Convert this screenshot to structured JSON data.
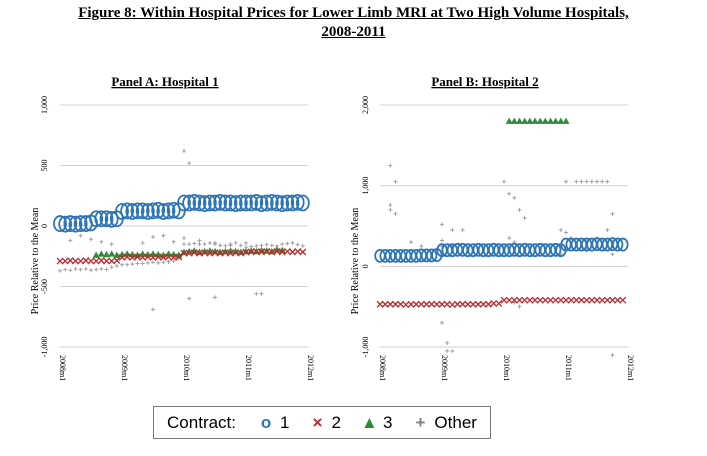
{
  "figure": {
    "title_line1": "Figure 8: Within Hospital Prices for Lower Limb MRI at Two High Volume Hospitals,",
    "title_line2": "2008-2011"
  },
  "colors": {
    "c1": "#2e75b6",
    "c2": "#c0282f",
    "c3": "#2e8b3a",
    "other": "#9a9a9a"
  },
  "legend": {
    "label": "Contract:",
    "items": [
      {
        "symbol": "o",
        "text": "1",
        "color": "#2e75b6"
      },
      {
        "symbol": "×",
        "text": "2",
        "color": "#c0282f"
      },
      {
        "symbol": "▲",
        "text": "3",
        "color": "#2e8b3a"
      },
      {
        "symbol": "+",
        "text": "Other",
        "color": "#808080"
      }
    ]
  },
  "chart_data": [
    {
      "type": "scatter",
      "title": "Panel A: Hospital 1",
      "ylabel": "Price Relative to the Mean",
      "ylim": [
        -1000,
        1000
      ],
      "yticks": [
        1000,
        500,
        0,
        -500,
        -1000
      ],
      "ytick_labels": [
        "1,000",
        "500",
        "0",
        "-500",
        "-1,000"
      ],
      "xlim": [
        0,
        48
      ],
      "xticks": [
        0,
        12,
        24,
        36,
        48
      ],
      "xtick_labels": [
        "2008m1",
        "2009m1",
        "2010m1",
        "2011m1",
        "2012m1"
      ],
      "grid": "horizontal",
      "series": [
        {
          "name": "1",
          "marker": "circle",
          "x": [
            0,
            1,
            2,
            3,
            4,
            5,
            6,
            7,
            8,
            9,
            10,
            11,
            12,
            13,
            14,
            15,
            16,
            17,
            18,
            19,
            20,
            21,
            22,
            23,
            24,
            25,
            26,
            27,
            28,
            29,
            30,
            31,
            32,
            33,
            34,
            35,
            36,
            37,
            38,
            39,
            40,
            41,
            42,
            43,
            44,
            45,
            46,
            47
          ],
          "y": [
            20,
            15,
            20,
            15,
            20,
            20,
            25,
            60,
            60,
            60,
            55,
            60,
            120,
            125,
            120,
            125,
            125,
            120,
            125,
            130,
            120,
            125,
            130,
            125,
            190,
            190,
            195,
            190,
            185,
            190,
            190,
            195,
            190,
            190,
            185,
            190,
            190,
            190,
            195,
            185,
            190,
            195,
            190,
            185,
            190,
            190,
            195,
            190
          ]
        },
        {
          "name": "2",
          "marker": "x",
          "x": [
            0,
            1,
            2,
            3,
            4,
            5,
            6,
            7,
            8,
            9,
            10,
            11,
            12,
            13,
            14,
            15,
            16,
            17,
            18,
            19,
            20,
            21,
            22,
            23,
            24,
            25,
            26,
            27,
            28,
            29,
            30,
            31,
            32,
            33,
            34,
            35,
            36,
            37,
            38,
            39,
            40,
            41,
            42,
            43,
            44,
            45,
            46,
            47
          ],
          "y": [
            -290,
            -290,
            -285,
            -290,
            -290,
            -285,
            -290,
            -290,
            -285,
            -290,
            -290,
            -285,
            -260,
            -255,
            -260,
            -255,
            -260,
            -255,
            -260,
            -255,
            -260,
            -255,
            -260,
            -255,
            -225,
            -225,
            -220,
            -225,
            -220,
            -225,
            -220,
            -225,
            -220,
            -225,
            -220,
            -225,
            -215,
            -215,
            -210,
            -215,
            -210,
            -215,
            -210,
            -215,
            -210,
            -215,
            -210,
            -215
          ]
        },
        {
          "name": "3",
          "marker": "triangle",
          "x": [
            7,
            8,
            9,
            10,
            11,
            12,
            13,
            14,
            15,
            16,
            17,
            18,
            19,
            20,
            21,
            22,
            23,
            24,
            25,
            26,
            27,
            28,
            29,
            30,
            31,
            32,
            33,
            34,
            35,
            36,
            37,
            38,
            39,
            40,
            41,
            42,
            43
          ],
          "y": [
            -240,
            -230,
            -235,
            -230,
            -240,
            -235,
            -230,
            -235,
            -240,
            -230,
            -235,
            -230,
            -235,
            -240,
            -230,
            -235,
            -240,
            -215,
            -210,
            -205,
            -215,
            -210,
            -205,
            -210,
            -215,
            -210,
            -205,
            -210,
            -215,
            -210,
            -205,
            -210,
            -200,
            -205,
            -210,
            -195,
            -200
          ]
        },
        {
          "name": "Other",
          "marker": "plus",
          "x": [
            0,
            1,
            2,
            3,
            4,
            5,
            6,
            7,
            8,
            9,
            10,
            11,
            12,
            13,
            14,
            15,
            16,
            17,
            18,
            19,
            20,
            21,
            22,
            23,
            24,
            25,
            26,
            27,
            28,
            29,
            30,
            31,
            32,
            33,
            34,
            35,
            36,
            37,
            38,
            39,
            40,
            41,
            42,
            43,
            44,
            45,
            46,
            47,
            2,
            4,
            6,
            8,
            10,
            16,
            18,
            20,
            22,
            24,
            27,
            30,
            33,
            36,
            24,
            25,
            38,
            18,
            25,
            30,
            39
          ],
          "y": [
            -370,
            -360,
            -365,
            -355,
            -360,
            -355,
            -365,
            -360,
            -355,
            -360,
            -340,
            -330,
            -320,
            -320,
            -315,
            -310,
            -310,
            -305,
            -300,
            -305,
            -300,
            -295,
            -290,
            -270,
            -150,
            -150,
            -145,
            -150,
            -150,
            -140,
            -140,
            -160,
            -165,
            -150,
            -140,
            -160,
            -175,
            -170,
            -165,
            -160,
            -155,
            -160,
            -165,
            -150,
            -145,
            -140,
            -155,
            -165,
            -120,
            -80,
            -110,
            -130,
            -150,
            -140,
            -90,
            -80,
            -130,
            -100,
            -120,
            -150,
            -160,
            -140,
            620,
            520,
            -560,
            -690,
            -600,
            -590,
            -560
          ]
        }
      ]
    },
    {
      "type": "scatter",
      "title": "Panel B: Hospital 2",
      "ylabel": "Price Relative to the Mean",
      "ylim": [
        -1000,
        2000
      ],
      "yticks": [
        2000,
        1000,
        0,
        -1000
      ],
      "ytick_labels": [
        "2,000",
        "1,000",
        "0",
        "-1,000"
      ],
      "xlim": [
        0,
        48
      ],
      "xticks": [
        0,
        12,
        24,
        36,
        48
      ],
      "xtick_labels": [
        "2008m1",
        "2009m1",
        "2010m1",
        "2011m1",
        "2012m1"
      ],
      "grid": "horizontal",
      "series": [
        {
          "name": "1",
          "marker": "circle",
          "x": [
            0,
            1,
            2,
            3,
            4,
            5,
            6,
            7,
            8,
            9,
            10,
            11,
            12,
            13,
            14,
            15,
            16,
            17,
            18,
            19,
            20,
            21,
            22,
            23,
            24,
            25,
            26,
            27,
            28,
            29,
            30,
            31,
            32,
            33,
            34,
            35,
            36,
            37,
            38,
            39,
            40,
            41,
            42,
            43,
            44,
            45,
            46,
            47
          ],
          "y": [
            130,
            130,
            130,
            130,
            130,
            130,
            130,
            130,
            135,
            135,
            135,
            140,
            200,
            200,
            200,
            205,
            205,
            200,
            200,
            205,
            200,
            200,
            205,
            200,
            200,
            200,
            205,
            200,
            205,
            200,
            200,
            205,
            200,
            200,
            205,
            200,
            270,
            270,
            270,
            270,
            270,
            270,
            275,
            270,
            270,
            275,
            270,
            270
          ]
        },
        {
          "name": "2",
          "marker": "x",
          "x": [
            0,
            1,
            2,
            3,
            4,
            5,
            6,
            7,
            8,
            9,
            10,
            11,
            12,
            13,
            14,
            15,
            16,
            17,
            18,
            19,
            20,
            21,
            22,
            23,
            24,
            25,
            26,
            27,
            28,
            29,
            30,
            31,
            32,
            33,
            34,
            35,
            36,
            37,
            38,
            39,
            40,
            41,
            42,
            43,
            44,
            45,
            46,
            47
          ],
          "y": [
            -470,
            -470,
            -470,
            -470,
            -470,
            -475,
            -470,
            -470,
            -470,
            -470,
            -470,
            -470,
            -470,
            -470,
            -475,
            -470,
            -470,
            -470,
            -470,
            -470,
            -470,
            -470,
            -460,
            -460,
            -420,
            -420,
            -420,
            -420,
            -420,
            -420,
            -420,
            -420,
            -420,
            -420,
            -420,
            -420,
            -420,
            -420,
            -420,
            -420,
            -420,
            -420,
            -420,
            -420,
            -420,
            -420,
            -420,
            -420
          ]
        },
        {
          "name": "3",
          "marker": "triangle",
          "x": [
            25,
            26,
            27,
            28,
            29,
            30,
            31,
            32,
            33,
            34,
            35,
            36
          ],
          "y": [
            1800,
            1800,
            1800,
            1800,
            1800,
            1800,
            1800,
            1800,
            1800,
            1800,
            1800,
            1800
          ]
        },
        {
          "name": "Other",
          "marker": "plus",
          "x": [
            2,
            3,
            2,
            12,
            14,
            12,
            24,
            25,
            26,
            27,
            28,
            25,
            26,
            36,
            38,
            39,
            40,
            41,
            42,
            43,
            44,
            45,
            40,
            42,
            44,
            35,
            36,
            37,
            45,
            45,
            2,
            3,
            6,
            8,
            12,
            14,
            16,
            34,
            35,
            40,
            12,
            13,
            13,
            14,
            26,
            27,
            45
          ],
          "y": [
            1250,
            1050,
            760,
            520,
            450,
            250,
            1050,
            900,
            850,
            700,
            600,
            350,
            300,
            1050,
            1050,
            1050,
            1050,
            1050,
            1050,
            1050,
            1050,
            650,
            300,
            350,
            450,
            450,
            420,
            350,
            300,
            150,
            700,
            650,
            300,
            250,
            320,
            250,
            450,
            220,
            150,
            200,
            -700,
            -950,
            -1050,
            -1050,
            -450,
            -500,
            -1100
          ]
        }
      ]
    }
  ]
}
